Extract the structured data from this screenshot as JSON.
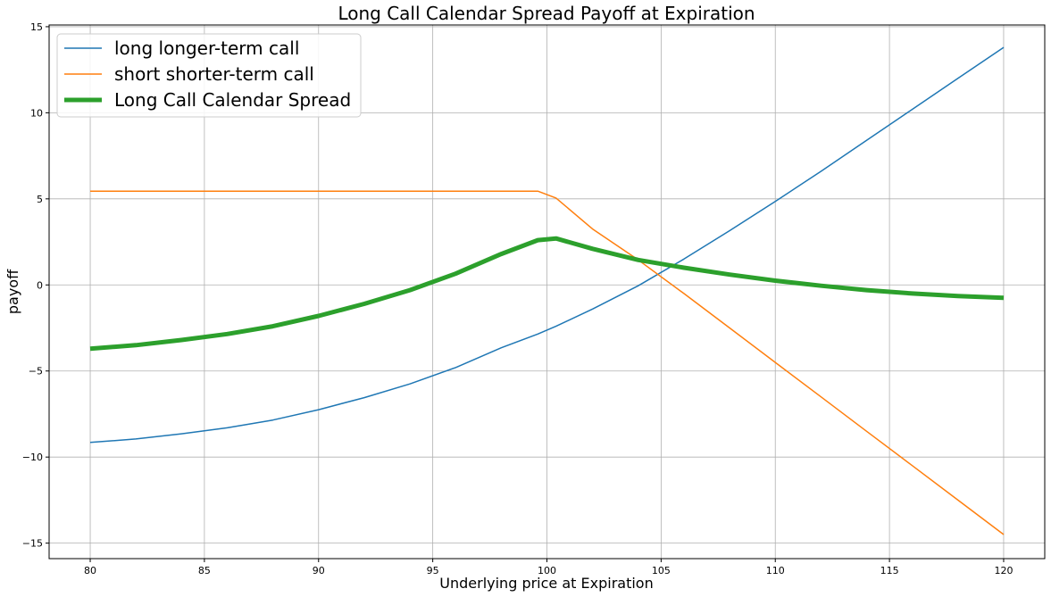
{
  "chart_data": {
    "type": "line",
    "title": "Long Call Calendar Spread Payoff at Expiration",
    "xlabel": "Underlying price at Expiration",
    "ylabel": "payoff",
    "xlim": [
      78.2,
      121.8
    ],
    "ylim": [
      -15.9,
      15.1
    ],
    "xticks": [
      80,
      85,
      90,
      95,
      100,
      105,
      110,
      115,
      120
    ],
    "yticks": [
      -15,
      -10,
      -5,
      0,
      5,
      10,
      15
    ],
    "grid": true,
    "legend_position": "top-left",
    "x": [
      80,
      82,
      84,
      86,
      88,
      90,
      92,
      94,
      96,
      98,
      99.6,
      100.4,
      102,
      104,
      106,
      108,
      110,
      112,
      114,
      116,
      118,
      120
    ],
    "series": [
      {
        "name": "long longer-term call",
        "color": "#1f77b4",
        "values": [
          -9.15,
          -8.95,
          -8.65,
          -8.3,
          -7.85,
          -7.25,
          -6.55,
          -5.75,
          -4.8,
          -3.65,
          -2.85,
          -2.4,
          -1.4,
          -0.05,
          1.5,
          3.15,
          4.85,
          6.6,
          8.4,
          10.2,
          12.0,
          13.8
        ]
      },
      {
        "name": "short shorter-term call",
        "color": "#ff7f0e",
        "values": [
          5.45,
          5.45,
          5.45,
          5.45,
          5.45,
          5.45,
          5.45,
          5.45,
          5.45,
          5.45,
          5.45,
          5.05,
          3.25,
          1.45,
          -0.5,
          -2.5,
          -4.5,
          -6.5,
          -8.5,
          -10.5,
          -12.5,
          -14.5
        ]
      },
      {
        "name": "Long Call Calendar Spread",
        "color": "#2ca02c",
        "values": [
          -3.7,
          -3.5,
          -3.2,
          -2.85,
          -2.4,
          -1.8,
          -1.1,
          -0.3,
          0.65,
          1.8,
          2.6,
          2.7,
          2.1,
          1.45,
          1.0,
          0.6,
          0.25,
          -0.05,
          -0.3,
          -0.5,
          -0.65,
          -0.75
        ]
      }
    ]
  }
}
